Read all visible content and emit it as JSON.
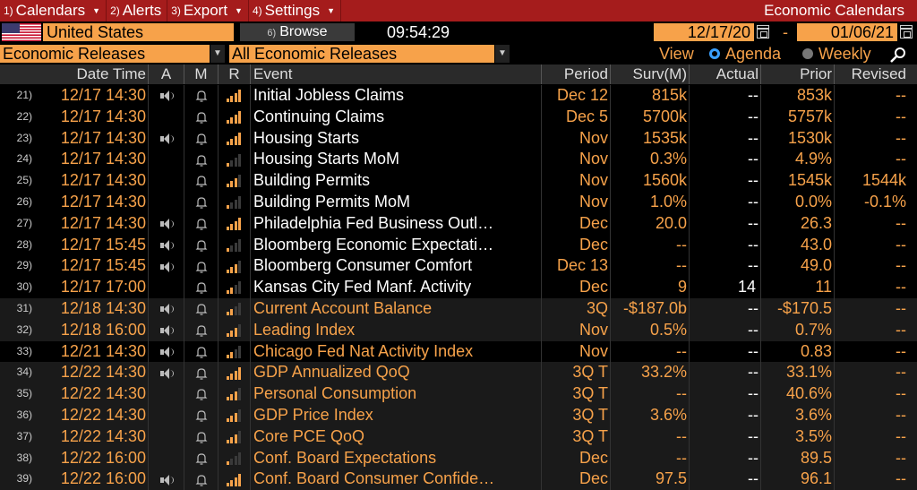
{
  "menu": {
    "items": [
      {
        "num": "1)",
        "label": "Calendars"
      },
      {
        "num": "2)",
        "label": "Alerts"
      },
      {
        "num": "3)",
        "label": "Export"
      },
      {
        "num": "4)",
        "label": "Settings"
      }
    ],
    "app_title": "Economic Calendars"
  },
  "toolbar": {
    "country": "United States",
    "browse_num": "6)",
    "browse_label": "Browse",
    "time": "09:54:29",
    "date_from": "12/17/20",
    "date_sep": "-",
    "date_to": "01/06/21"
  },
  "filters": {
    "category": "Economic Releases",
    "subcategory": "All Economic Releases",
    "view_label": "View",
    "view_options": [
      {
        "label": "Agenda",
        "selected": true
      },
      {
        "label": "Weekly",
        "selected": false
      }
    ]
  },
  "colors": {
    "accent": "#f7a24a",
    "menubar": "#a51c1c",
    "radio_on": "#3aa0ff"
  },
  "table": {
    "headers": {
      "datetime": "Date Time",
      "a": "A",
      "m": "M",
      "r": "R",
      "event": "Event",
      "period": "Period",
      "surv": "Surv(M)",
      "actual": "Actual",
      "prior": "Prior",
      "revised": "Revised"
    },
    "rows": [
      {
        "idx": "21)",
        "dt": "12/17 14:30",
        "audio": true,
        "relevance": 4,
        "event": "Initial Jobless Claims",
        "period": "Dec 12",
        "surv": "815k",
        "actual": "--",
        "prior": "853k",
        "revised": "--",
        "style": "white"
      },
      {
        "idx": "22)",
        "dt": "12/17 14:30",
        "audio": false,
        "relevance": 4,
        "event": "Continuing Claims",
        "period": "Dec 5",
        "surv": "5700k",
        "actual": "--",
        "prior": "5757k",
        "revised": "--",
        "style": "white"
      },
      {
        "idx": "23)",
        "dt": "12/17 14:30",
        "audio": true,
        "relevance": 4,
        "event": "Housing Starts",
        "period": "Nov",
        "surv": "1535k",
        "actual": "--",
        "prior": "1530k",
        "revised": "--",
        "style": "white"
      },
      {
        "idx": "24)",
        "dt": "12/17 14:30",
        "audio": false,
        "relevance": 1,
        "event": "Housing Starts MoM",
        "period": "Nov",
        "surv": "0.3%",
        "actual": "--",
        "prior": "4.9%",
        "revised": "--",
        "style": "white"
      },
      {
        "idx": "25)",
        "dt": "12/17 14:30",
        "audio": false,
        "relevance": 3,
        "event": "Building Permits",
        "period": "Nov",
        "surv": "1560k",
        "actual": "--",
        "prior": "1545k",
        "revised": "1544k",
        "style": "white"
      },
      {
        "idx": "26)",
        "dt": "12/17 14:30",
        "audio": false,
        "relevance": 1,
        "event": "Building Permits MoM",
        "period": "Nov",
        "surv": "1.0%",
        "actual": "--",
        "prior": "0.0%",
        "revised": "-0.1%",
        "style": "white"
      },
      {
        "idx": "27)",
        "dt": "12/17 14:30",
        "audio": true,
        "relevance": 4,
        "event": "Philadelphia Fed Business Outl…",
        "period": "Dec",
        "surv": "20.0",
        "actual": "--",
        "prior": "26.3",
        "revised": "--",
        "style": "white"
      },
      {
        "idx": "28)",
        "dt": "12/17 15:45",
        "audio": true,
        "relevance": 1,
        "event": "Bloomberg Economic Expectati…",
        "period": "Dec",
        "surv": "--",
        "actual": "--",
        "prior": "43.0",
        "revised": "--",
        "style": "white"
      },
      {
        "idx": "29)",
        "dt": "12/17 15:45",
        "audio": true,
        "relevance": 3,
        "event": "Bloomberg Consumer Comfort",
        "period": "Dec 13",
        "surv": "--",
        "actual": "--",
        "prior": "49.0",
        "revised": "--",
        "style": "white"
      },
      {
        "idx": "30)",
        "dt": "12/17 17:00",
        "audio": false,
        "relevance": 2,
        "event": "Kansas City Fed Manf. Activity",
        "period": "Dec",
        "surv": "9",
        "actual": "14",
        "prior": "11",
        "revised": "--",
        "style": "white"
      },
      {
        "idx": "31)",
        "dt": "12/18 14:30",
        "audio": true,
        "relevance": 2,
        "event": "Current Account Balance",
        "period": "3Q",
        "surv": "-$187.0b",
        "actual": "--",
        "prior": "-$170.5",
        "revised": "--",
        "style": "orange"
      },
      {
        "idx": "32)",
        "dt": "12/18 16:00",
        "audio": true,
        "relevance": 3,
        "event": "Leading Index",
        "period": "Nov",
        "surv": "0.5%",
        "actual": "--",
        "prior": "0.7%",
        "revised": "--",
        "style": "orange"
      },
      {
        "idx": "33)",
        "dt": "12/21 14:30",
        "audio": true,
        "relevance": 2,
        "event": "Chicago Fed Nat Activity Index",
        "period": "Nov",
        "surv": "--",
        "actual": "--",
        "prior": "0.83",
        "revised": "--",
        "style": "orange"
      },
      {
        "idx": "34)",
        "dt": "12/22 14:30",
        "audio": true,
        "relevance": 4,
        "event": "GDP Annualized QoQ",
        "period": "3Q T",
        "surv": "33.2%",
        "actual": "--",
        "prior": "33.1%",
        "revised": "--",
        "style": "orange"
      },
      {
        "idx": "35)",
        "dt": "12/22 14:30",
        "audio": false,
        "relevance": 3,
        "event": "Personal Consumption",
        "period": "3Q T",
        "surv": "--",
        "actual": "--",
        "prior": "40.6%",
        "revised": "--",
        "style": "orange"
      },
      {
        "idx": "36)",
        "dt": "12/22 14:30",
        "audio": false,
        "relevance": 3,
        "event": "GDP Price Index",
        "period": "3Q T",
        "surv": "3.6%",
        "actual": "--",
        "prior": "3.6%",
        "revised": "--",
        "style": "orange"
      },
      {
        "idx": "37)",
        "dt": "12/22 14:30",
        "audio": false,
        "relevance": 3,
        "event": "Core PCE QoQ",
        "period": "3Q T",
        "surv": "--",
        "actual": "--",
        "prior": "3.5%",
        "revised": "--",
        "style": "orange"
      },
      {
        "idx": "38)",
        "dt": "12/22 16:00",
        "audio": false,
        "relevance": 1,
        "event": "Conf. Board Expectations",
        "period": "Dec",
        "surv": "--",
        "actual": "--",
        "prior": "89.5",
        "revised": "--",
        "style": "orange"
      },
      {
        "idx": "39)",
        "dt": "12/22 16:00",
        "audio": true,
        "relevance": 4,
        "event": "Conf. Board Consumer Confide…",
        "period": "Dec",
        "surv": "97.5",
        "actual": "--",
        "prior": "96.1",
        "revised": "--",
        "style": "orange"
      }
    ]
  }
}
